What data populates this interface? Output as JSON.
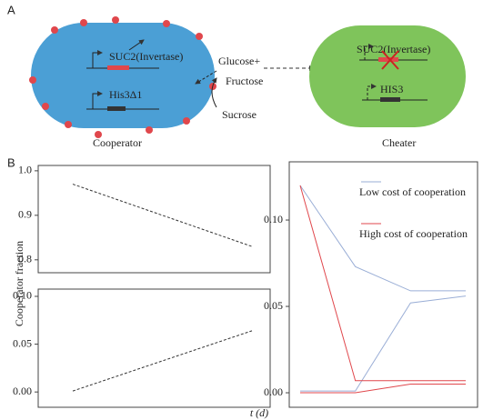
{
  "figure": {
    "panel_a_label": "A",
    "panel_b_label": "B",
    "ylabel": "Cooperator fraction",
    "xlabel": "t (d)"
  },
  "panel_a": {
    "cooperator": {
      "gene1": "SUC2(Invertase)",
      "gene2": "His3Δ1",
      "label": "Cooperator"
    },
    "sugars": {
      "glucose": "Glucose+",
      "fructose": "Fructose",
      "sucrose": "Sucrose"
    },
    "cheater": {
      "gene1": "SUC2(Invertase)",
      "gene2": "HIS3",
      "label": "Cheater"
    }
  },
  "chart_data": [
    {
      "type": "line",
      "categories": [
        null,
        null
      ],
      "series": [
        {
          "color": "#333333",
          "values": [
            0.97,
            0.83
          ]
        }
      ],
      "dashed": true,
      "ylim": [
        0.771,
        1.012
      ],
      "yticks": [
        0.8,
        0.9,
        {
          "value": 1,
          "label": "1.0"
        }
      ]
    },
    {
      "type": "line",
      "categories": [
        null,
        null
      ],
      "series": [
        {
          "color": "#333333",
          "values": [
            0.001,
            0.064
          ]
        }
      ],
      "dashed": true,
      "ylim": [
        -0.016,
        0.1076
      ],
      "yticks": [
        {
          "value": 0,
          "label": "0.00"
        },
        0.05,
        {
          "value": 0.1,
          "label": "0.10"
        }
      ]
    },
    {
      "type": "line",
      "categories": [
        null,
        null,
        null,
        null
      ],
      "series": [
        {
          "name": "Low cost of cooperation",
          "color": "#9aaed6",
          "values": [
            0.12,
            0.073,
            0.059,
            0.059
          ]
        },
        {
          "color": "#9aaed6",
          "values": [
            0.001,
            0.001,
            0.052,
            0.056
          ]
        },
        {
          "name": "High cost of cooperation",
          "color": "#e0474c",
          "values": [
            0.12,
            0.007,
            0.007,
            0.007
          ]
        },
        {
          "color": "#e0474c",
          "values": [
            0.0,
            0.0,
            0.005,
            0.005
          ]
        }
      ],
      "dashed": false,
      "legend": "top-right",
      "ylim": [
        -0.0084,
        0.1337
      ],
      "yticks": [
        {
          "value": 0,
          "label": "0.00"
        },
        0.05,
        {
          "value": 0.1,
          "label": "0.10"
        }
      ]
    }
  ]
}
